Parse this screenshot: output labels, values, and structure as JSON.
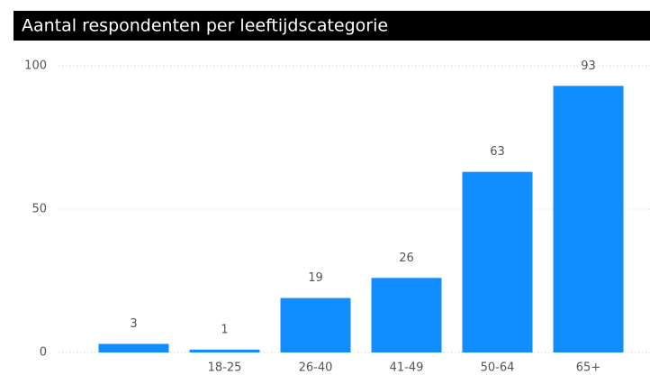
{
  "chart_data": {
    "type": "bar",
    "title": "Aantal respondenten per leeftijdscategorie",
    "categories": [
      null,
      "18-25",
      "26-40",
      "41-49",
      "50-64",
      "65+"
    ],
    "values": [
      3,
      1,
      19,
      26,
      63,
      93
    ],
    "color": "#118dff",
    "ylim": [
      0,
      100
    ],
    "yticks": [
      0,
      50,
      100
    ],
    "grid": true
  }
}
